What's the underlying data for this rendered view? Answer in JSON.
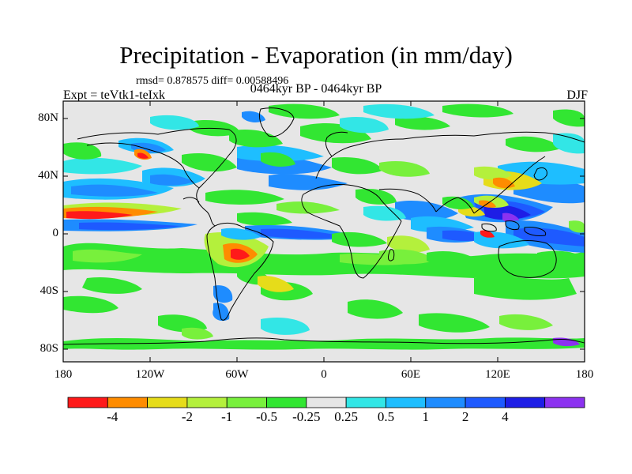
{
  "title": "Precipitation - Evaporation (in mm/day)",
  "stats": "rmsd= 0.878575 diff= 0.00588496",
  "left_label": "Expt = teVtk1-teIxk",
  "center_label": "0464kyr BP - 0464kyr BP",
  "right_label": "DJF",
  "lat_ticks": [
    "80N",
    "40N",
    "0",
    "40S",
    "80S"
  ],
  "lon_ticks": [
    "180",
    "120W",
    "60W",
    "0",
    "60E",
    "120E",
    "180"
  ],
  "colorbar": {
    "colors": [
      "#ff1a1a",
      "#ff8c00",
      "#e6dc1a",
      "#b4f03c",
      "#78f03c",
      "#32e632",
      "#e6e6e6",
      "#32e6e6",
      "#1ebeff",
      "#1e8cff",
      "#1e5aff",
      "#1e1ee6",
      "#8c32f0"
    ],
    "labels": [
      "-4",
      "-2",
      "-1",
      "-0.5",
      "-0.25",
      "0.25",
      "0.5",
      "1",
      "2",
      "4"
    ]
  },
  "map_colors": {
    "background": "#e6e6e6",
    "coast": "#000000"
  }
}
